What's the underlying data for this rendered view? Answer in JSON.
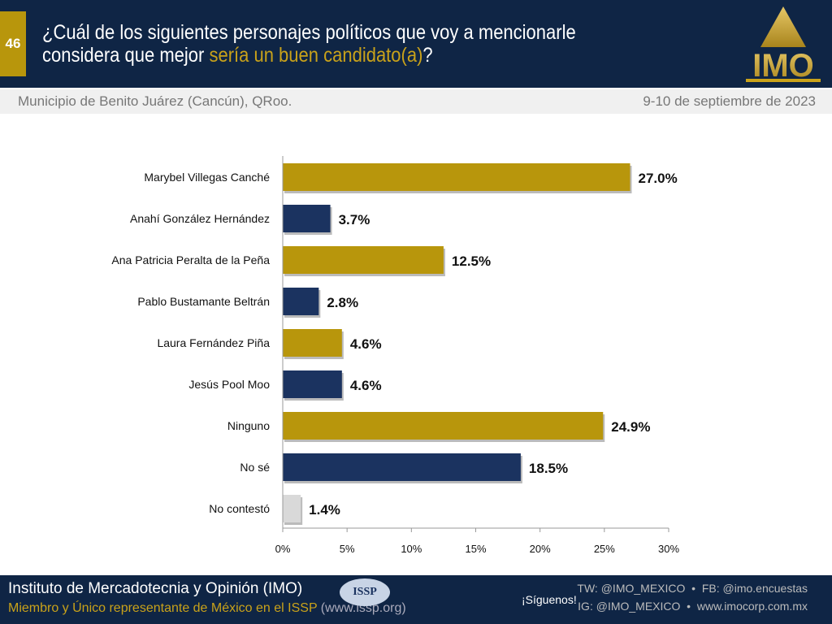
{
  "header": {
    "slide_number": "46",
    "title_part1": "¿Cuál de los siguientes personajes políticos que voy a mencionarle considera que mejor ",
    "title_highlight": "sería un buen candidato(a)",
    "title_end": "?",
    "logo_text": "IMO"
  },
  "subheader": {
    "location": "Municipio de Benito Juárez (Cancún), QRoo.",
    "date": "9-10 de septiembre de 2023"
  },
  "colors": {
    "gold": "#b8960c",
    "navy": "#1b3360",
    "gray": "#d9d9d9"
  },
  "chart_data": {
    "type": "bar",
    "orientation": "horizontal",
    "categories": [
      "Marybel Villegas Canché",
      "Anahí González Hernández",
      "Ana Patricia Peralta de la Peña",
      "Pablo Bustamante Beltrán",
      "Laura Fernández Piña",
      "Jesús Pool Moo",
      "Ninguno",
      "No sé",
      "No contestó"
    ],
    "values": [
      27.0,
      3.7,
      12.5,
      2.8,
      4.6,
      4.6,
      24.9,
      18.5,
      1.4
    ],
    "labels": [
      "27.0%",
      "3.7%",
      "12.5%",
      "2.8%",
      "4.6%",
      "4.6%",
      "24.9%",
      "18.5%",
      "1.4%"
    ],
    "bar_colors": [
      "#b8960c",
      "#1b3360",
      "#b8960c",
      "#1b3360",
      "#b8960c",
      "#1b3360",
      "#b8960c",
      "#1b3360",
      "#d9d9d9"
    ],
    "xlim": [
      0,
      30
    ],
    "ticks": [
      "0%",
      "5%",
      "10%",
      "15%",
      "20%",
      "25%",
      "30%"
    ],
    "grid": false
  },
  "footer": {
    "org": "Instituto de Mercadotecnia y Opinión (IMO)",
    "member": "Miembro y Único representante de México en el ISSP",
    "member_url": "(www.issp.org)",
    "issp_logo": "ISSP",
    "follow": "¡Síguenos!",
    "social1": "TW: @IMO_MEXICO  •  FB: @imo.encuestas",
    "social2": "IG: @IMO_MEXICO  •  www.imocorp.com.mx"
  }
}
